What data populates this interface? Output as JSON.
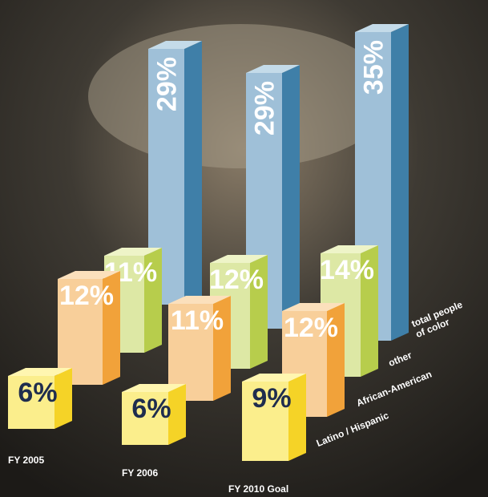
{
  "chart_data": {
    "type": "bar3d",
    "categories": [
      "FY 2005",
      "FY 2006",
      "FY 2010 Goal"
    ],
    "series": [
      {
        "name": "Latino / Hispanic",
        "color": "#fbee8c",
        "values": [
          6,
          6,
          9
        ],
        "value_labels": [
          "6%",
          "6%",
          "9%"
        ]
      },
      {
        "name": "African-American",
        "color": "#f8cf9a",
        "values": [
          12,
          11,
          12
        ],
        "value_labels": [
          "12%",
          "11%",
          "12%"
        ]
      },
      {
        "name": "other",
        "color": "#dde8a5",
        "values": [
          11,
          12,
          14
        ],
        "value_labels": [
          "11%",
          "12%",
          "14%"
        ]
      },
      {
        "name": "total people of color",
        "color": "#9fc0d8",
        "values": [
          29,
          29,
          35
        ],
        "value_labels": [
          "29%",
          "29%",
          "35%"
        ]
      }
    ]
  }
}
